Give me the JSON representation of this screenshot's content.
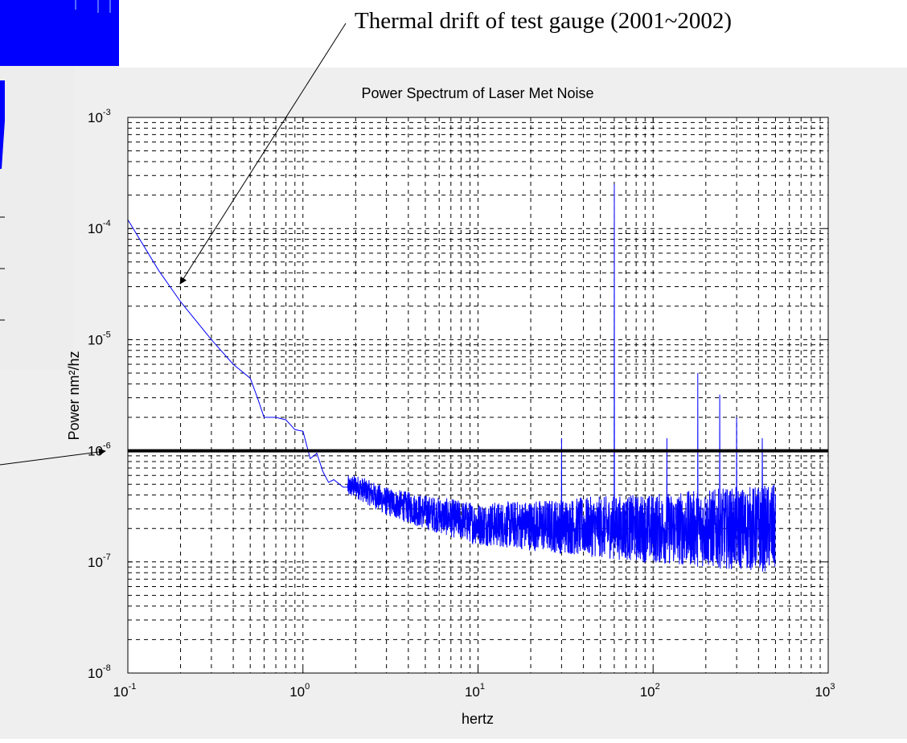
{
  "annotation": {
    "text": "Thermal drift of test gauge (2001~2002)"
  },
  "colors": {
    "background": "#ffffff",
    "figure_bg": "#efefef",
    "series": "#0000ff",
    "threshold": "#000000",
    "left_panel_blue": "#0000ff"
  },
  "chart_data": {
    "type": "line",
    "title": "Power Spectrum of Laser Met Noise",
    "xlabel": "hertz",
    "ylabel": "Power nm²/hz",
    "xscale": "log",
    "yscale": "log",
    "xlim": [
      0.1,
      1000
    ],
    "ylim": [
      1e-08,
      0.001
    ],
    "grid": true,
    "x_ticks": [
      {
        "base": "10",
        "exp": "-1"
      },
      {
        "base": "10",
        "exp": "0"
      },
      {
        "base": "10",
        "exp": "1"
      },
      {
        "base": "10",
        "exp": "2"
      },
      {
        "base": "10",
        "exp": "3"
      }
    ],
    "y_ticks": [
      {
        "base": "10",
        "exp": "-8"
      },
      {
        "base": "10",
        "exp": "-7"
      },
      {
        "base": "10",
        "exp": "-6"
      },
      {
        "base": "10",
        "exp": "-5"
      },
      {
        "base": "10",
        "exp": "-4"
      },
      {
        "base": "10",
        "exp": "-3"
      }
    ],
    "threshold": {
      "y": 1e-06
    },
    "series": [
      {
        "trend": {
          "x": [
            0.1,
            0.15,
            0.2,
            0.3,
            0.4,
            0.5,
            0.55,
            0.6,
            0.7,
            0.8,
            0.9,
            1.0,
            1.1,
            1.2,
            1.3,
            1.4,
            1.5,
            1.7,
            1.8,
            2.0,
            3.0,
            5.0,
            10,
            30,
            100,
            200,
            500
          ],
          "y": [
            0.00012,
            4.2e-05,
            2.2e-05,
            1e-05,
            6e-06,
            4.5e-06,
            3e-06,
            2e-06,
            2e-06,
            1.9e-06,
            1.55e-06,
            1.5e-06,
            8.5e-07,
            9.5e-07,
            6.5e-07,
            5.2e-07,
            5.5e-07,
            4.7e-07,
            4.7e-07,
            4.8e-07,
            3.5e-07,
            2.8e-07,
            2.2e-07,
            2.1e-07,
            2e-07,
            2e-07,
            2e-07
          ]
        },
        "noise_start": 1.8,
        "noise_end": 500,
        "spikes": [
          {
            "x": 30,
            "y": 1.3e-06
          },
          {
            "x": 60,
            "y": 0.00025
          },
          {
            "x": 120,
            "y": 1.3e-06
          },
          {
            "x": 180,
            "y": 5e-06
          },
          {
            "x": 240,
            "y": 3.2e-06
          },
          {
            "x": 300,
            "y": 2e-06
          },
          {
            "x": 420,
            "y": 1.3e-06
          }
        ]
      }
    ]
  }
}
